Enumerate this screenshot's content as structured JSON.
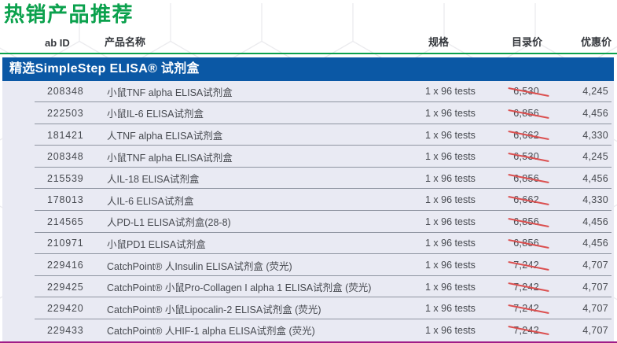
{
  "page": {
    "title": "热销产品推荐"
  },
  "colors": {
    "green": "#0ba14d",
    "banner_blue": "#0b58a5",
    "row_background": "#e9eaf3",
    "strike_red": "#db4f4f",
    "bottom_purple": "#a11c87"
  },
  "table": {
    "columns": [
      "ab ID",
      "产品名称",
      "规格",
      "目录价",
      "优惠价"
    ],
    "section_header": "精选SimpleStep ELISA® 试剂盒",
    "rows": [
      {
        "id": "208348",
        "name": "小鼠TNF alpha ELISA试剂盒",
        "spec": "1 x 96 tests",
        "list_price": "6,530",
        "promo_price": "4,245"
      },
      {
        "id": "222503",
        "name": "小鼠IL-6 ELISA试剂盒",
        "spec": "1 x 96 tests",
        "list_price": "6,856",
        "promo_price": "4,456"
      },
      {
        "id": "181421",
        "name": "人TNF alpha ELISA试剂盒",
        "spec": "1 x 96 tests",
        "list_price": "6,662",
        "promo_price": "4,330"
      },
      {
        "id": "208348",
        "name": "小鼠TNF alpha ELISA试剂盒",
        "spec": "1 x 96 tests",
        "list_price": "6,530",
        "promo_price": "4,245"
      },
      {
        "id": "215539",
        "name": "人IL-18 ELISA试剂盒",
        "spec": "1 x 96 tests",
        "list_price": "6,856",
        "promo_price": "4,456"
      },
      {
        "id": "178013",
        "name": "人IL-6 ELISA试剂盒",
        "spec": "1 x 96 tests",
        "list_price": "6,662",
        "promo_price": "4,330"
      },
      {
        "id": "214565",
        "name": "人PD-L1 ELISA试剂盒(28-8)",
        "spec": "1 x 96 tests",
        "list_price": "6,856",
        "promo_price": "4,456"
      },
      {
        "id": "210971",
        "name": "小鼠PD1 ELISA试剂盒",
        "spec": "1 x 96 tests",
        "list_price": "6,856",
        "promo_price": "4,456"
      },
      {
        "id": "229416",
        "name": "CatchPoint® 人Insulin ELISA试剂盒 (荧光)",
        "spec": "1 x 96 tests",
        "list_price": "7,242",
        "promo_price": "4,707"
      },
      {
        "id": "229425",
        "name": "CatchPoint® 小鼠Pro-Collagen I alpha 1 ELISA试剂盒 (荧光)",
        "spec": "1 x 96 tests",
        "list_price": "7,242",
        "promo_price": "4,707"
      },
      {
        "id": "229420",
        "name": "CatchPoint® 小鼠Lipocalin-2 ELISA试剂盒 (荧光)",
        "spec": "1 x 96 tests",
        "list_price": "7,242",
        "promo_price": "4,707"
      },
      {
        "id": "229433",
        "name": "CatchPoint® 人HIF-1 alpha ELISA试剂盒 (荧光)",
        "spec": "1 x 96 tests",
        "list_price": "7,242",
        "promo_price": "4,707"
      }
    ]
  }
}
